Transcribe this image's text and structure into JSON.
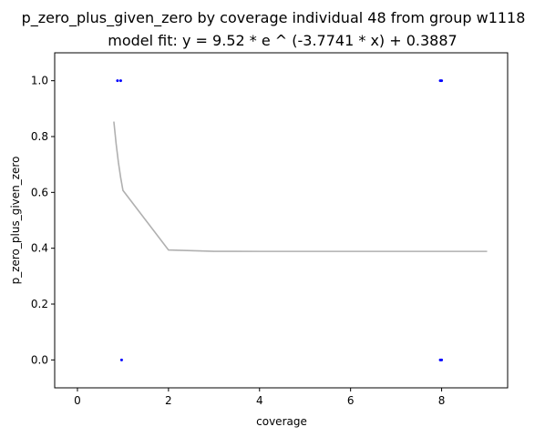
{
  "chart_data": {
    "type": "scatter",
    "title": "p_zero_plus_given_zero by coverage individual 48 from group w1118",
    "subtitle": "model fit: y = 9.52 * e ^ (-3.7741 * x) + 0.3887",
    "xlabel": "coverage",
    "ylabel": "p_zero_plus_given_zero",
    "xlim": [
      -0.5,
      9.45
    ],
    "ylim": [
      -0.1,
      1.1
    ],
    "xticks": [
      0,
      2,
      4,
      6,
      8
    ],
    "xtick_labels": [
      "0",
      "2",
      "4",
      "6",
      "8"
    ],
    "yticks": [
      0.0,
      0.2,
      0.4,
      0.6,
      0.8,
      1.0
    ],
    "ytick_labels": [
      "0.0",
      "0.2",
      "0.4",
      "0.6",
      "0.8",
      "1.0"
    ],
    "grid": false,
    "colors": {
      "points": "#0000ff",
      "fit_line": "#b0b0b0",
      "axes": "#000000"
    },
    "points": [
      {
        "x": 0.88,
        "y": 1.0
      },
      {
        "x": 0.95,
        "y": 1.0
      },
      {
        "x": 0.97,
        "y": 0.0
      },
      {
        "x": 7.97,
        "y": 1.0
      },
      {
        "x": 8.0,
        "y": 1.0
      },
      {
        "x": 7.97,
        "y": 0.0
      },
      {
        "x": 8.0,
        "y": 0.0
      }
    ],
    "fit": {
      "a": 9.52,
      "b": -3.7741,
      "c": 0.3887,
      "x": [
        0.8,
        0.85,
        0.9,
        0.95,
        1.0,
        2.0,
        3.0,
        4.0,
        5.0,
        6.0,
        7.0,
        8.0,
        9.0
      ]
    }
  }
}
